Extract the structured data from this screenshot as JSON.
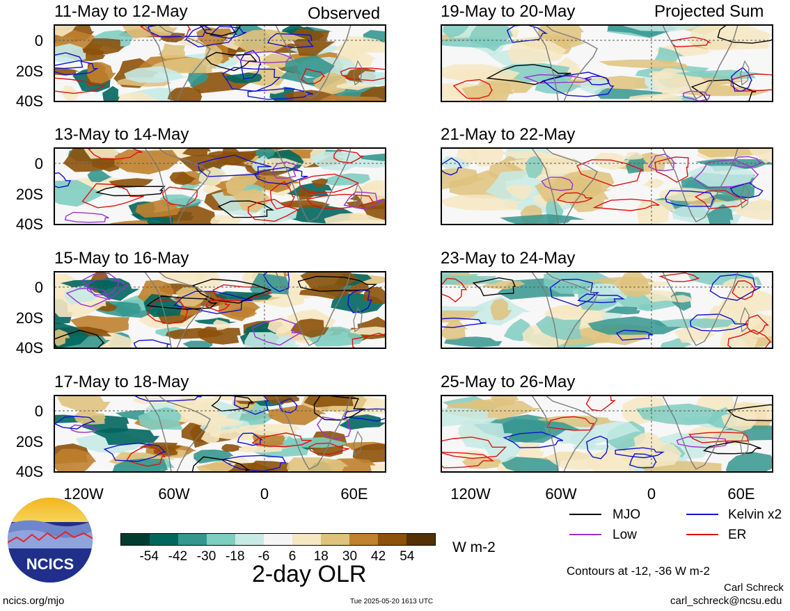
{
  "headers": {
    "left": "Observed",
    "right": "Projected Sum"
  },
  "panels_left": [
    {
      "title": "11-May to 12-May"
    },
    {
      "title": "13-May to 14-May"
    },
    {
      "title": "15-May to 16-May"
    },
    {
      "title": "17-May to 18-May"
    }
  ],
  "panels_right": [
    {
      "title": "19-May to 20-May"
    },
    {
      "title": "21-May to 22-May"
    },
    {
      "title": "23-May to 24-May"
    },
    {
      "title": "25-May to 26-May"
    }
  ],
  "y_ticks": [
    "0",
    "20S",
    "40S"
  ],
  "x_ticks": [
    "120W",
    "60W",
    "0",
    "60E"
  ],
  "colorbar": {
    "colors": [
      "#003c30",
      "#01665e",
      "#35978f",
      "#80cdc1",
      "#c7eae5",
      "#f5f5f5",
      "#f6e8c3",
      "#dfc27d",
      "#bf812d",
      "#8c510a",
      "#543005"
    ],
    "ticks": [
      "-54",
      "-42",
      "-30",
      "-18",
      "-6",
      "6",
      "18",
      "30",
      "42",
      "54"
    ],
    "units": "W m-2",
    "title": "2-day OLR"
  },
  "legend": [
    {
      "label": "MJO",
      "color": "#000000"
    },
    {
      "label": "Kelvin x2",
      "color": "#1010d0"
    },
    {
      "label": "Low",
      "color": "#9a32cd"
    },
    {
      "label": "ER",
      "color": "#e01010"
    }
  ],
  "contour_note": "Contours at -12, -36 W m-2",
  "logo_text": "NCICS",
  "footer": {
    "url": "ncics.org/mjo",
    "timestamp": "Tue 2025-05-20 1613 UTC",
    "author": "Carl Schreck",
    "email": "carl_schreck@ncsu.edu"
  }
}
